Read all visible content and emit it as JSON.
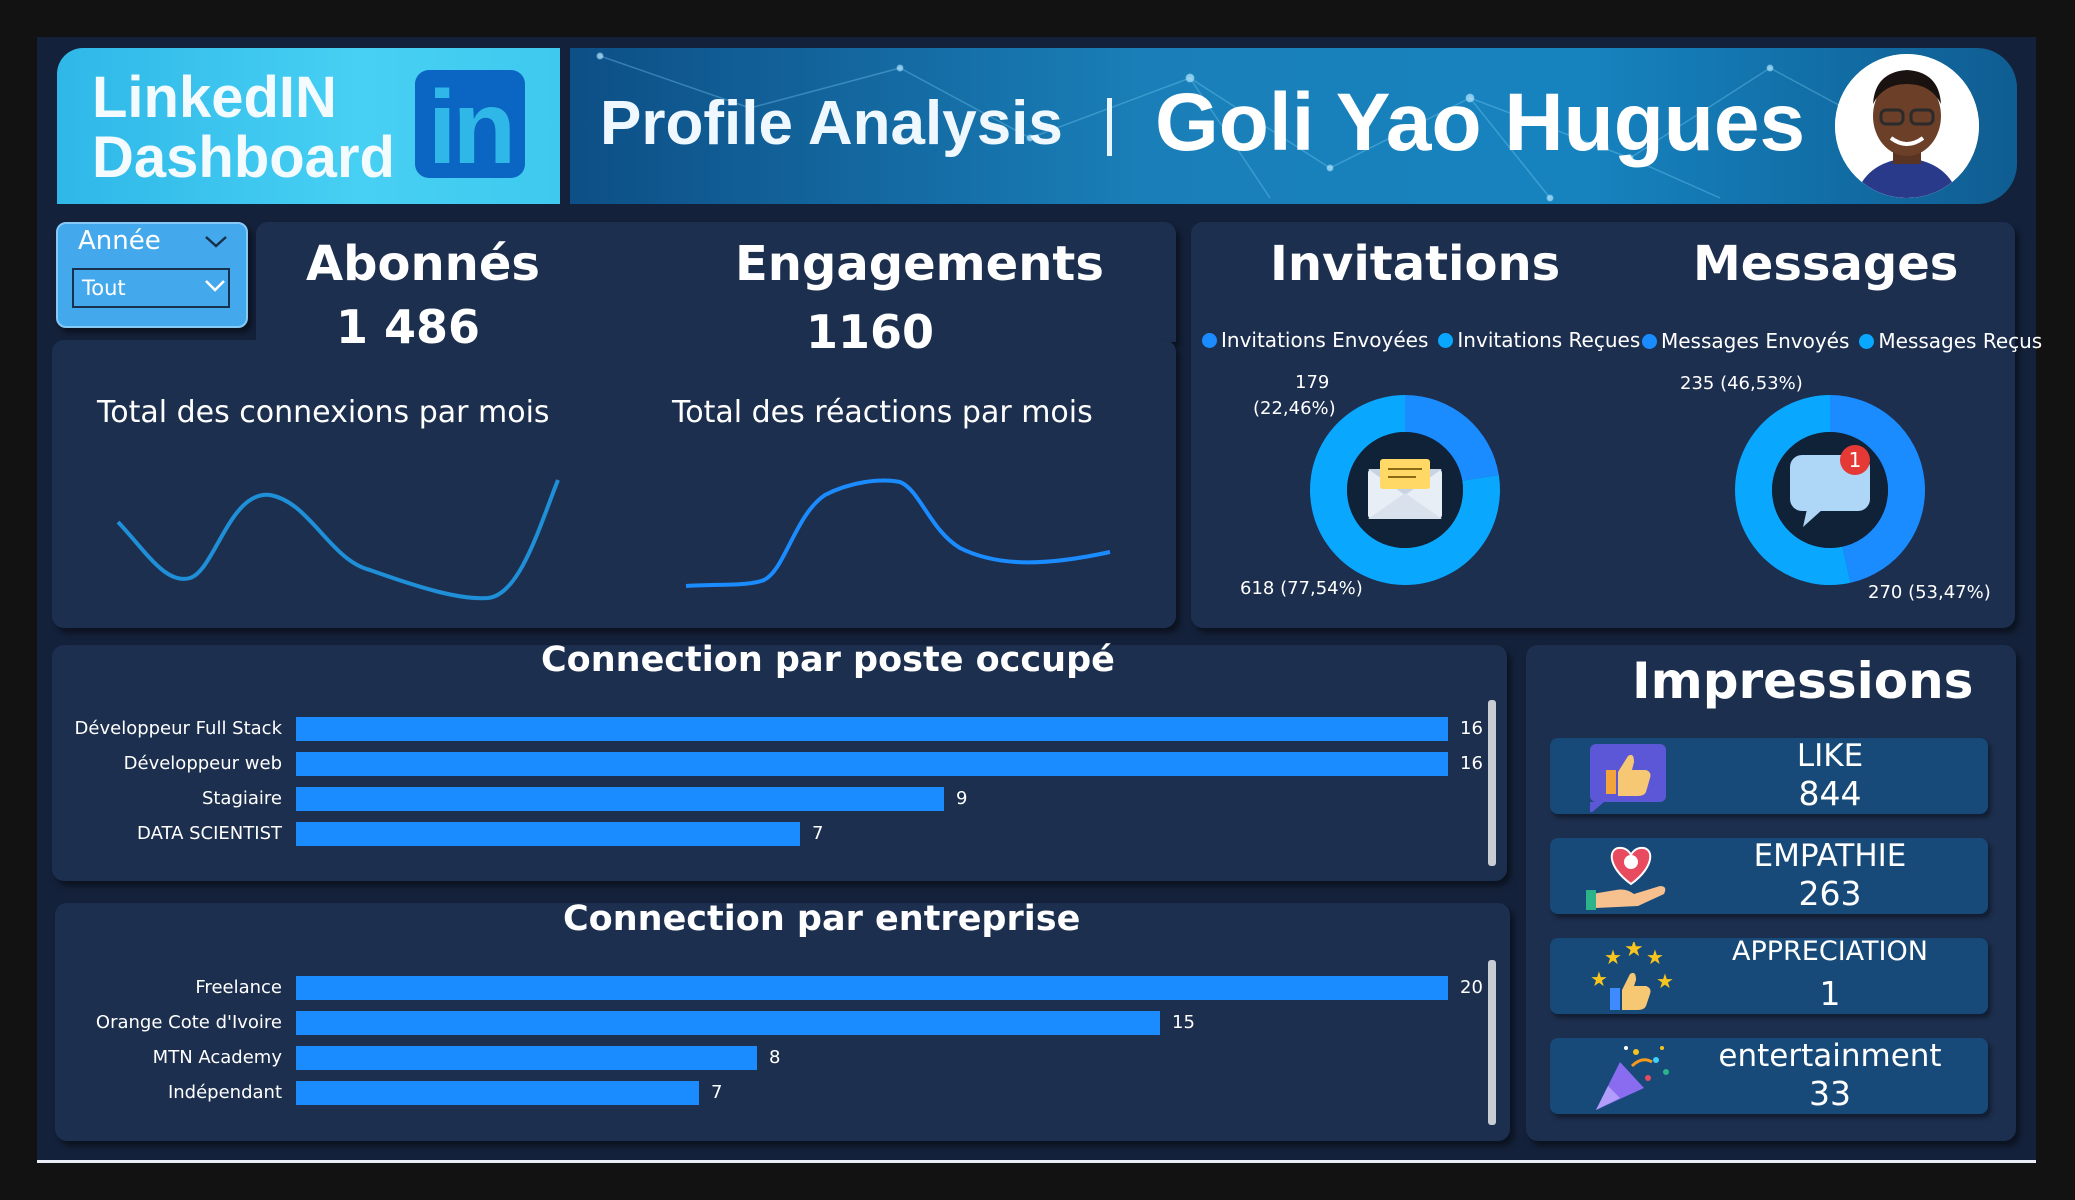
{
  "header": {
    "brand_line1": "LinkedIN",
    "brand_line2": "Dashboard",
    "logo_text": "in",
    "subtitle": "Profile Analysis",
    "name": "Goli Yao Hugues"
  },
  "slicer": {
    "label": "Année",
    "value": "Tout"
  },
  "kpis": {
    "abonnes": {
      "title": "Abonnés",
      "value": "1 486"
    },
    "engagements": {
      "title": "Engagements",
      "value": "1160"
    }
  },
  "sparklines": {
    "connexions": {
      "title": "Total des connexions par mois"
    },
    "reactions": {
      "title": "Total des réactions par mois"
    }
  },
  "invitations": {
    "title": "Invitations",
    "legend": [
      "Invitations Envoyées",
      "Invitations Reçues"
    ],
    "label_top_value": "179",
    "label_top_pct": "(22,46%)",
    "label_bottom": "618 (77,54%)"
  },
  "messages": {
    "title": "Messages",
    "legend": [
      "Messages Envoyés",
      "Messages Reçus"
    ],
    "label_top": "235 (46,53%)",
    "label_bottom": "270 (53,47%)",
    "badge": "1"
  },
  "poste": {
    "title": "Connection par poste occupé",
    "items": [
      {
        "label": "Développeur Full Stack",
        "value": "16"
      },
      {
        "label": "Développeur web",
        "value": "16"
      },
      {
        "label": "Stagiaire",
        "value": "9"
      },
      {
        "label": "DATA SCIENTIST",
        "value": "7"
      }
    ]
  },
  "entreprise": {
    "title": "Connection par entreprise",
    "items": [
      {
        "label": "Freelance",
        "value": "20"
      },
      {
        "label": "Orange Cote d'Ivoire",
        "value": "15"
      },
      {
        "label": "MTN Academy",
        "value": "8"
      },
      {
        "label": "Indépendant",
        "value": "7"
      }
    ]
  },
  "impressions": {
    "title": "Impressions",
    "items": [
      {
        "name": "LIKE",
        "value": "844"
      },
      {
        "name": "EMPATHIE",
        "value": "263"
      },
      {
        "name": "APPRECIATION",
        "value": "1"
      },
      {
        "name": "entertainment",
        "value": "33"
      }
    ]
  },
  "chart_data": [
    {
      "type": "bar",
      "title": "Connection par poste occupé",
      "categories": [
        "Développeur Full Stack",
        "Développeur web",
        "Stagiaire",
        "DATA SCIENTIST"
      ],
      "values": [
        16,
        16,
        9,
        7
      ],
      "orientation": "horizontal",
      "color": "#1a8cff"
    },
    {
      "type": "bar",
      "title": "Connection par entreprise",
      "categories": [
        "Freelance",
        "Orange Cote d'Ivoire",
        "MTN Academy",
        "Indépendant"
      ],
      "values": [
        20,
        15,
        8,
        7
      ],
      "orientation": "horizontal",
      "color": "#1a8cff"
    },
    {
      "type": "pie",
      "title": "Invitations",
      "labels": [
        "Invitations Envoyées",
        "Invitations Reçues"
      ],
      "values": [
        179,
        618
      ],
      "colors": [
        "#1a8cff",
        "#0aa7ff"
      ]
    },
    {
      "type": "pie",
      "title": "Messages",
      "labels": [
        "Messages Envoyés",
        "Messages Reçus"
      ],
      "values": [
        235,
        270
      ],
      "colors": [
        "#1a8cff",
        "#0aa7ff"
      ]
    }
  ],
  "colors": {
    "bar": "#1a8cff",
    "donut_a": "#1a8cff",
    "donut_b": "#0aa7ff",
    "spark_a": "#1f8fd8",
    "spark_b": "#1a8cff",
    "panel": "#1d2f4f"
  }
}
